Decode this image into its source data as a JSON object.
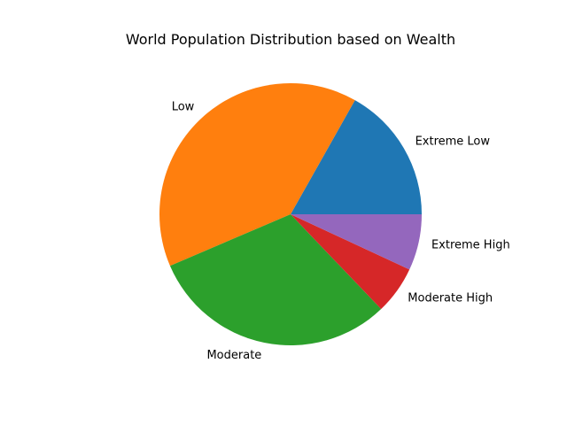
{
  "chart_data": {
    "type": "pie",
    "title": "World Population Distribution based on Wealth",
    "categories": [
      "Extreme Low",
      "Low",
      "Moderate",
      "Moderate High",
      "Extreme High"
    ],
    "values": [
      17,
      40,
      31,
      6,
      7
    ],
    "colors": [
      "#1f77b4",
      "#ff7f0e",
      "#2ca02c",
      "#d62728",
      "#9467bd"
    ],
    "start_angle_deg": 0,
    "direction": "counterclockwise",
    "legend": "none"
  }
}
